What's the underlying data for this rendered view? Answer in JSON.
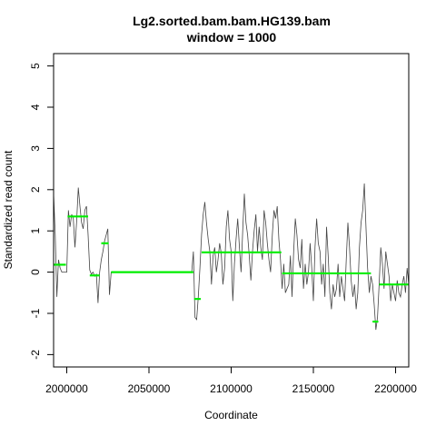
{
  "chart_data": {
    "type": "line",
    "title_lines": [
      "Lg2.sorted.bam.bam.HG139.bam",
      "window = 1000"
    ],
    "xlabel": "Coordinate",
    "ylabel": "Standardized read count",
    "xlim": [
      1992000,
      2208000
    ],
    "ylim": [
      -2.3,
      5.3
    ],
    "x_ticks": [
      2000000,
      2050000,
      2100000,
      2150000,
      2200000
    ],
    "x_tick_labels": [
      "2000000",
      "2050000",
      "2100000",
      "2150000",
      "2200000"
    ],
    "y_ticks": [
      -2,
      -1,
      0,
      1,
      2,
      3,
      4,
      5
    ],
    "y_tick_labels": [
      "-2",
      "-1",
      "0",
      "1",
      "2",
      "3",
      "4",
      "5"
    ],
    "grid": false,
    "colors": {
      "raw": "#444444",
      "segments": "#00ee00"
    },
    "series": [
      {
        "style": "raw-line",
        "points": [
          [
            1992000,
            1.9
          ],
          [
            1993000,
            0.9
          ],
          [
            1994000,
            -0.6
          ],
          [
            1995000,
            0.3
          ],
          [
            1996000,
            0.1
          ],
          [
            1997000,
            0.0
          ],
          [
            1998000,
            0.0
          ],
          [
            1999000,
            0.0
          ],
          [
            2000000,
            0.0
          ],
          [
            2001000,
            1.5
          ],
          [
            2002000,
            1.1
          ],
          [
            2003000,
            1.4
          ],
          [
            2004000,
            1.3
          ],
          [
            2005000,
            0.6
          ],
          [
            2006000,
            1.2
          ],
          [
            2007000,
            2.05
          ],
          [
            2008000,
            1.6
          ],
          [
            2009000,
            1.2
          ],
          [
            2010000,
            1.05
          ],
          [
            2011000,
            1.5
          ],
          [
            2012000,
            1.6
          ],
          [
            2013000,
            0.9
          ],
          [
            2014000,
            0.05
          ],
          [
            2015000,
            -0.05
          ],
          [
            2016000,
            0.0
          ],
          [
            2017000,
            -0.1
          ],
          [
            2018000,
            -0.05
          ],
          [
            2019000,
            -0.75
          ],
          [
            2020000,
            0.0
          ],
          [
            2021000,
            0.3
          ],
          [
            2022000,
            0.5
          ],
          [
            2023000,
            0.75
          ],
          [
            2024000,
            0.9
          ],
          [
            2025000,
            1.05
          ],
          [
            2026000,
            -0.55
          ],
          [
            2027000,
            0.0
          ],
          [
            2030000,
            0.0
          ],
          [
            2040000,
            0.0
          ],
          [
            2050000,
            0.0
          ],
          [
            2060000,
            0.0
          ],
          [
            2070000,
            0.0
          ],
          [
            2075000,
            0.0
          ],
          [
            2076000,
            0.0
          ],
          [
            2077000,
            0.5
          ],
          [
            2078000,
            -1.1
          ],
          [
            2079000,
            -1.15
          ],
          [
            2080000,
            -0.6
          ],
          [
            2081000,
            0.1
          ],
          [
            2082000,
            0.9
          ],
          [
            2083000,
            1.4
          ],
          [
            2084000,
            1.7
          ],
          [
            2085000,
            1.2
          ],
          [
            2086000,
            0.8
          ],
          [
            2087000,
            0.5
          ],
          [
            2088000,
            -0.3
          ],
          [
            2089000,
            0.4
          ],
          [
            2090000,
            0.6
          ],
          [
            2091000,
            0.0
          ],
          [
            2092000,
            0.3
          ],
          [
            2093000,
            0.7
          ],
          [
            2094000,
            0.45
          ],
          [
            2095000,
            -0.3
          ],
          [
            2096000,
            0.1
          ],
          [
            2097000,
            1.1
          ],
          [
            2098000,
            1.5
          ],
          [
            2099000,
            0.8
          ],
          [
            2100000,
            0.5
          ],
          [
            2101000,
            -0.7
          ],
          [
            2102000,
            0.2
          ],
          [
            2103000,
            0.8
          ],
          [
            2104000,
            1.3
          ],
          [
            2105000,
            0.6
          ],
          [
            2106000,
            0.0
          ],
          [
            2107000,
            1.0
          ],
          [
            2108000,
            1.9
          ],
          [
            2109000,
            1.2
          ],
          [
            2110000,
            0.9
          ],
          [
            2111000,
            0.4
          ],
          [
            2112000,
            -0.2
          ],
          [
            2113000,
            0.5
          ],
          [
            2114000,
            1.0
          ],
          [
            2115000,
            1.4
          ],
          [
            2116000,
            0.5
          ],
          [
            2117000,
            1.1
          ],
          [
            2118000,
            0.6
          ],
          [
            2119000,
            0.3
          ],
          [
            2120000,
            1.5
          ],
          [
            2121000,
            1.2
          ],
          [
            2122000,
            0.7
          ],
          [
            2123000,
            0.3
          ],
          [
            2124000,
            0.0
          ],
          [
            2125000,
            0.9
          ],
          [
            2126000,
            1.5
          ],
          [
            2127000,
            1.3
          ],
          [
            2128000,
            1.6
          ],
          [
            2129000,
            0.8
          ],
          [
            2130000,
            0.3
          ],
          [
            2131000,
            -0.4
          ],
          [
            2132000,
            0.2
          ],
          [
            2133000,
            -0.5
          ],
          [
            2134000,
            -0.4
          ],
          [
            2135000,
            -0.3
          ],
          [
            2136000,
            0.4
          ],
          [
            2137000,
            -0.6
          ],
          [
            2138000,
            0.5
          ],
          [
            2139000,
            1.3
          ],
          [
            2140000,
            0.9
          ],
          [
            2141000,
            0.3
          ],
          [
            2142000,
            0.1
          ],
          [
            2143000,
            0.8
          ],
          [
            2144000,
            -0.4
          ],
          [
            2145000,
            0.2
          ],
          [
            2146000,
            -0.3
          ],
          [
            2147000,
            0.0
          ],
          [
            2148000,
            0.7
          ],
          [
            2149000,
            0.1
          ],
          [
            2150000,
            -0.7
          ],
          [
            2151000,
            0.6
          ],
          [
            2152000,
            1.3
          ],
          [
            2153000,
            0.7
          ],
          [
            2154000,
            0.5
          ],
          [
            2155000,
            -0.3
          ],
          [
            2156000,
            0.2
          ],
          [
            2157000,
            -0.6
          ],
          [
            2158000,
            1.1
          ],
          [
            2159000,
            0.4
          ],
          [
            2160000,
            -0.5
          ],
          [
            2161000,
            -0.9
          ],
          [
            2162000,
            -0.3
          ],
          [
            2163000,
            -0.6
          ],
          [
            2164000,
            -0.4
          ],
          [
            2165000,
            0.2
          ],
          [
            2166000,
            -0.6
          ],
          [
            2167000,
            -0.1
          ],
          [
            2168000,
            -0.4
          ],
          [
            2169000,
            -0.7
          ],
          [
            2170000,
            0.3
          ],
          [
            2171000,
            1.2
          ],
          [
            2172000,
            0.6
          ],
          [
            2173000,
            -0.2
          ],
          [
            2174000,
            -0.6
          ],
          [
            2175000,
            -0.3
          ],
          [
            2176000,
            -0.9
          ],
          [
            2177000,
            -0.5
          ],
          [
            2178000,
            0.6
          ],
          [
            2179000,
            1.2
          ],
          [
            2180000,
            1.5
          ],
          [
            2181000,
            2.15
          ],
          [
            2182000,
            1.1
          ],
          [
            2183000,
            0.1
          ],
          [
            2184000,
            -0.5
          ],
          [
            2185000,
            -0.1
          ],
          [
            2186000,
            -0.3
          ],
          [
            2187000,
            -0.8
          ],
          [
            2188000,
            -1.4
          ],
          [
            2189000,
            -1.1
          ],
          [
            2190000,
            -0.3
          ],
          [
            2191000,
            0.6
          ],
          [
            2192000,
            0.2
          ],
          [
            2193000,
            -0.4
          ],
          [
            2194000,
            0.5
          ],
          [
            2195000,
            0.2
          ],
          [
            2196000,
            -0.1
          ],
          [
            2197000,
            -0.7
          ],
          [
            2198000,
            -0.3
          ],
          [
            2199000,
            -0.5
          ],
          [
            2200000,
            -0.7
          ],
          [
            2201000,
            -0.2
          ],
          [
            2202000,
            -0.5
          ],
          [
            2203000,
            -0.6
          ],
          [
            2204000,
            -0.3
          ],
          [
            2205000,
            -0.1
          ],
          [
            2206000,
            -0.5
          ],
          [
            2207000,
            0.1
          ],
          [
            2208000,
            -0.3
          ]
        ]
      },
      {
        "style": "segments",
        "segments": [
          {
            "x0": 1992000,
            "x1": 1999500,
            "y": 0.18
          },
          {
            "x0": 2000500,
            "x1": 2013000,
            "y": 1.35
          },
          {
            "x0": 2014000,
            "x1": 2020000,
            "y": -0.08
          },
          {
            "x0": 2021000,
            "x1": 2025500,
            "y": 0.7
          },
          {
            "x0": 2027000,
            "x1": 2077000,
            "y": 0.0
          },
          {
            "x0": 2077500,
            "x1": 2081500,
            "y": -0.65
          },
          {
            "x0": 2082000,
            "x1": 2130500,
            "y": 0.48
          },
          {
            "x0": 2131000,
            "x1": 2185000,
            "y": -0.03
          },
          {
            "x0": 2186000,
            "x1": 2189500,
            "y": -1.2
          },
          {
            "x0": 2190000,
            "x1": 2208000,
            "y": -0.3
          }
        ]
      }
    ]
  }
}
